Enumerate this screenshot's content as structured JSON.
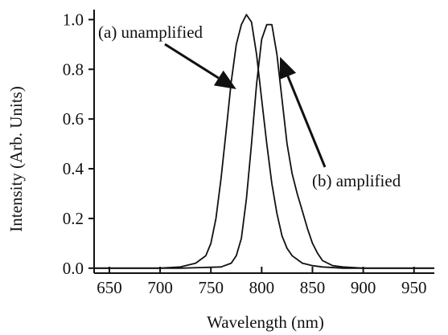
{
  "chart_data": {
    "type": "line",
    "title": "",
    "xlabel": "Wavelength (nm)",
    "ylabel": "Intensity (Arb. Units)",
    "xlim": [
      635,
      970
    ],
    "ylim": [
      -0.02,
      1.04
    ],
    "xticks": [
      650,
      700,
      750,
      800,
      850,
      900,
      950
    ],
    "yticks": [
      0.0,
      0.2,
      0.4,
      0.6,
      0.8,
      1.0
    ],
    "xtick_labels": [
      "650",
      "700",
      "750",
      "800",
      "850",
      "900",
      "950"
    ],
    "ytick_labels": [
      "0.0",
      "0.2",
      "0.4",
      "0.6",
      "0.8",
      "1.0"
    ],
    "grid": false,
    "legend": "none",
    "series": [
      {
        "name": "(a) unamplified",
        "x": [
          635,
          700,
          720,
          735,
          745,
          750,
          755,
          760,
          765,
          770,
          775,
          780,
          785,
          790,
          795,
          800,
          805,
          810,
          815,
          820,
          825,
          830,
          840,
          850,
          860,
          880,
          970
        ],
        "y": [
          0.0,
          0.0,
          0.005,
          0.02,
          0.05,
          0.1,
          0.2,
          0.36,
          0.55,
          0.75,
          0.9,
          0.98,
          1.02,
          0.99,
          0.86,
          0.68,
          0.5,
          0.34,
          0.22,
          0.13,
          0.08,
          0.05,
          0.02,
          0.01,
          0.005,
          0.0,
          0.0
        ]
      },
      {
        "name": "(b) amplified",
        "x": [
          635,
          720,
          760,
          770,
          775,
          780,
          785,
          790,
          795,
          800,
          805,
          810,
          815,
          820,
          825,
          830,
          835,
          840,
          845,
          850,
          855,
          860,
          870,
          880,
          900,
          970
        ],
        "y": [
          0.0,
          0.0,
          0.005,
          0.02,
          0.05,
          0.12,
          0.28,
          0.5,
          0.74,
          0.92,
          0.98,
          0.98,
          0.86,
          0.68,
          0.5,
          0.38,
          0.3,
          0.23,
          0.16,
          0.1,
          0.06,
          0.03,
          0.01,
          0.005,
          0.0,
          0.0
        ]
      }
    ],
    "annotations": [
      {
        "text": "(a) unamplified",
        "arrow_to": [
          775,
          0.72
        ]
      },
      {
        "text": "(b) amplified",
        "arrow_to": [
          818,
          0.85
        ]
      }
    ]
  }
}
